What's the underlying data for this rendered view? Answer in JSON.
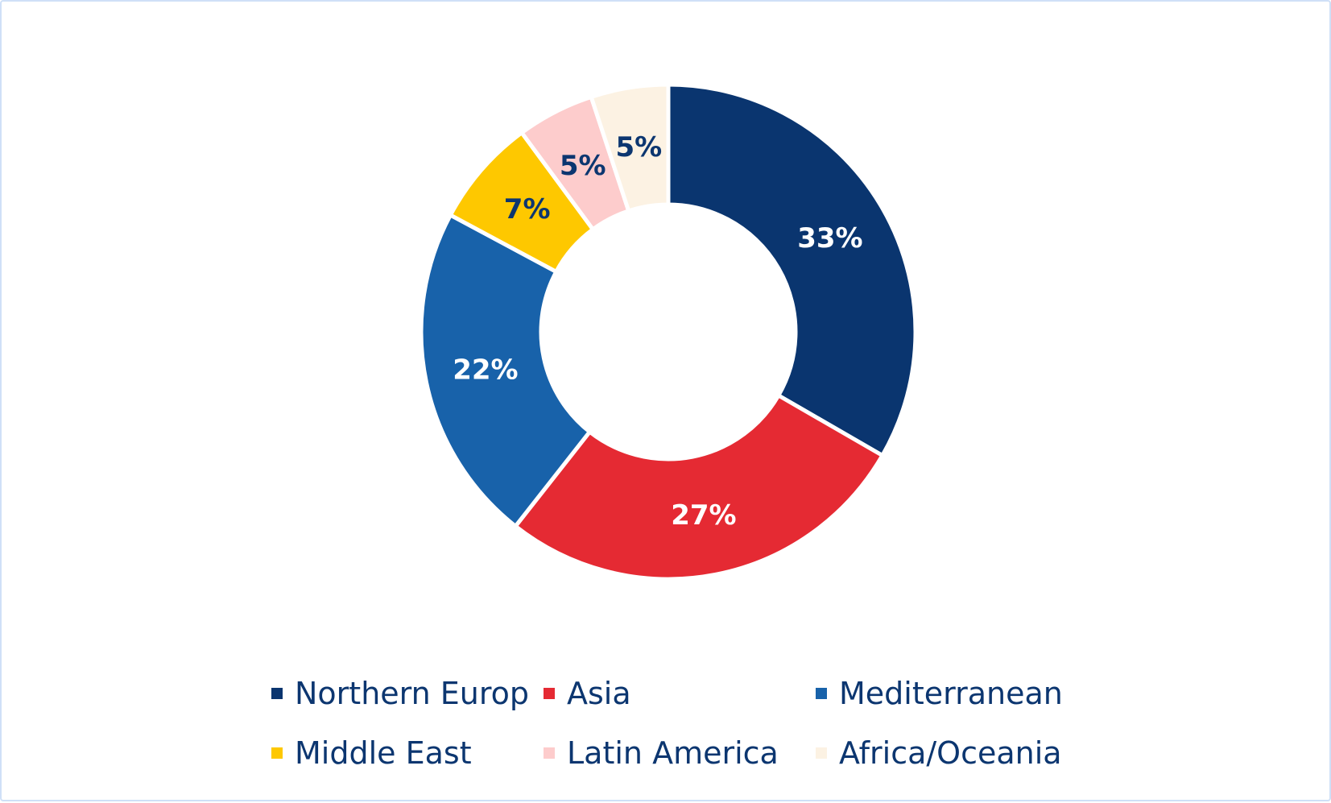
{
  "chart_data": {
    "type": "pie",
    "variant": "donut",
    "categories": [
      "Northern Europ",
      "Asia",
      "Mediterranean",
      "Middle East",
      "Latin America",
      "Africa/Oceania"
    ],
    "values": [
      33,
      27,
      22,
      7,
      5,
      5
    ],
    "labels": [
      "33%",
      "27%",
      "22%",
      "7%",
      "5%",
      "5%"
    ],
    "colors": [
      "#0a356f",
      "#e52a33",
      "#1862aa",
      "#fec800",
      "#fdcccc",
      "#fcf2e3"
    ],
    "label_colors": [
      "#ffffff",
      "#ffffff",
      "#ffffff",
      "#0c3670",
      "#0c3670",
      "#0c3670"
    ],
    "start_angle_deg": 0,
    "direction": "clockwise",
    "legend_position": "bottom",
    "legend_columns": 3
  }
}
